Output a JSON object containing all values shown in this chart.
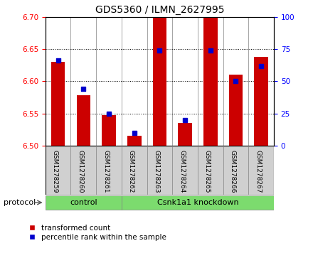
{
  "title": "GDS5360 / ILMN_2627995",
  "samples": [
    "GSM1278259",
    "GSM1278260",
    "GSM1278261",
    "GSM1278262",
    "GSM1278263",
    "GSM1278264",
    "GSM1278265",
    "GSM1278266",
    "GSM1278267"
  ],
  "transformed_count": [
    6.63,
    6.578,
    6.548,
    6.515,
    6.7,
    6.535,
    6.7,
    6.61,
    6.638
  ],
  "percentile_rank": [
    66,
    44,
    25,
    10,
    74,
    20,
    74,
    50,
    62
  ],
  "ylim_left": [
    6.5,
    6.7
  ],
  "ylim_right": [
    0,
    100
  ],
  "yticks_left": [
    6.5,
    6.55,
    6.6,
    6.65,
    6.7
  ],
  "yticks_right": [
    0,
    25,
    50,
    75,
    100
  ],
  "control_count": 3,
  "knockdown_count": 6,
  "control_label": "control",
  "knockdown_label": "Csnk1a1 knockdown",
  "protocol_label": "protocol",
  "bar_color": "#cc0000",
  "percentile_color": "#0000cc",
  "green_bg": "#7cdb6e",
  "gray_bg": "#d0d0d0",
  "legend_red_label": "transformed count",
  "legend_blue_label": "percentile rank within the sample",
  "bar_width": 0.55
}
